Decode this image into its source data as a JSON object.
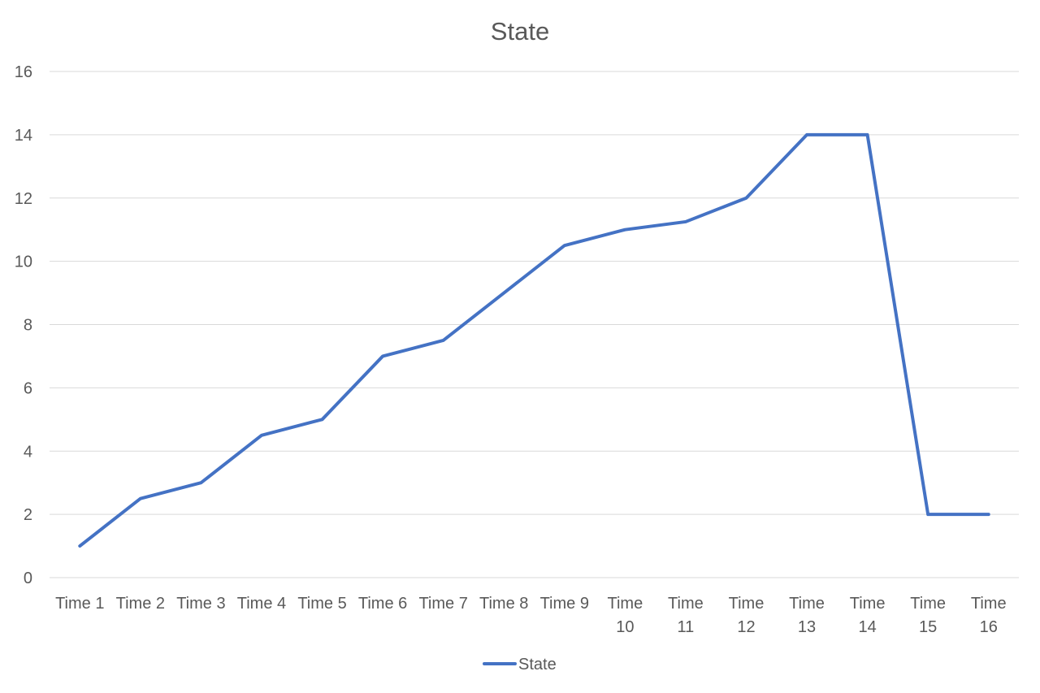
{
  "chart_data": {
    "type": "line",
    "title": "State",
    "categories": [
      [
        "Time 1"
      ],
      [
        "Time 2"
      ],
      [
        "Time 3"
      ],
      [
        "Time 4"
      ],
      [
        "Time 5"
      ],
      [
        "Time 6"
      ],
      [
        "Time 7"
      ],
      [
        "Time 8"
      ],
      [
        "Time 9"
      ],
      [
        "Time",
        "10"
      ],
      [
        "Time",
        "11"
      ],
      [
        "Time",
        "12"
      ],
      [
        "Time",
        "13"
      ],
      [
        "Time",
        "14"
      ],
      [
        "Time",
        "15"
      ],
      [
        "Time",
        "16"
      ]
    ],
    "series": [
      {
        "name": "State",
        "values": [
          1,
          2.5,
          3,
          4.5,
          5,
          7,
          7.5,
          9,
          10.5,
          11,
          11.25,
          12,
          14,
          14,
          2,
          2
        ]
      }
    ],
    "xlabel": "",
    "ylabel": "",
    "ylim": [
      0,
      16
    ],
    "yticks": [
      0,
      2,
      4,
      6,
      8,
      10,
      12,
      14,
      16
    ],
    "grid": true,
    "legend_position": "bottom",
    "series_color": "#4472c4"
  }
}
